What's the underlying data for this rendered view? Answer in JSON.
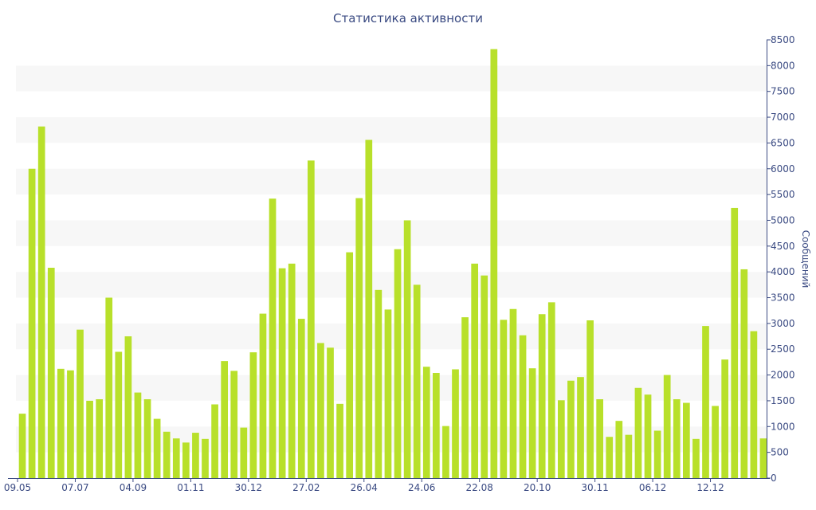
{
  "chart_data": {
    "type": "bar",
    "title": "Статистика активности",
    "xlabel": "",
    "ylabel": "Сообщений",
    "ylim": [
      0,
      8500
    ],
    "y_axis_position": "right",
    "grid": "alternating horizontal bands",
    "bar_color": "#b8e02a",
    "band_color": "#f7f7f7",
    "axis_color": "#3a4a82",
    "y_ticks": [
      0,
      500,
      1000,
      1500,
      2000,
      2500,
      3000,
      3500,
      4000,
      4500,
      5000,
      5500,
      6000,
      6500,
      7000,
      7500,
      8000,
      8500
    ],
    "x_tick_labels": [
      {
        "label": "09.05",
        "index": 0
      },
      {
        "label": "07.07",
        "index": 6
      },
      {
        "label": "04.09",
        "index": 12
      },
      {
        "label": "01.11",
        "index": 18
      },
      {
        "label": "30.12",
        "index": 24
      },
      {
        "label": "27.02",
        "index": 30
      },
      {
        "label": "26.04",
        "index": 36
      },
      {
        "label": "24.06",
        "index": 42
      },
      {
        "label": "22.08",
        "index": 48
      },
      {
        "label": "20.10",
        "index": 54
      },
      {
        "label": "30.11",
        "index": 60
      },
      {
        "label": "06.12",
        "index": 66
      },
      {
        "label": "12.12",
        "index": 72
      }
    ],
    "values": [
      1250,
      6000,
      6820,
      4080,
      2120,
      2090,
      2880,
      1500,
      1530,
      3500,
      2450,
      2750,
      1660,
      1530,
      1150,
      900,
      770,
      690,
      880,
      760,
      1430,
      2270,
      2080,
      980,
      2440,
      3190,
      5420,
      4070,
      4160,
      3090,
      6160,
      2620,
      2530,
      1440,
      4380,
      5430,
      6560,
      3650,
      3270,
      4440,
      5000,
      3750,
      2160,
      2040,
      1010,
      2110,
      3120,
      4160,
      3930,
      8320,
      3070,
      3280,
      2770,
      2130,
      3180,
      3410,
      1510,
      1890,
      1960,
      3060,
      1530,
      800,
      1110,
      840,
      1750,
      1620,
      920,
      2000,
      1530,
      1460,
      760,
      2950,
      1400,
      2300,
      5240,
      4050,
      2850,
      770
    ]
  }
}
